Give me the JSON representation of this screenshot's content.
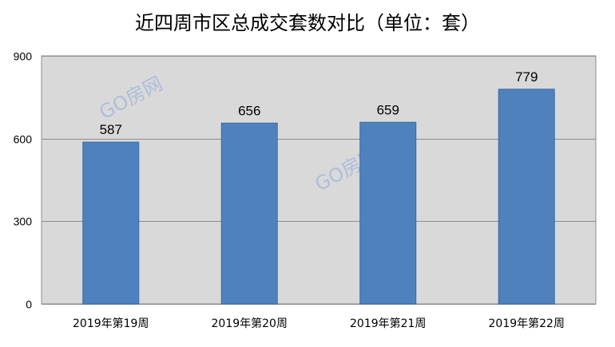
{
  "title": "近四周市区总成交套数对比（单位：套）",
  "watermark": "GO房网",
  "colors": {
    "bar": "#4f81bd",
    "bar_edge": "#3a6aa6",
    "plot_background": "#d9d9d9",
    "gridline": "#8c8c8c",
    "watermark": "#7f9bd6"
  },
  "chart_data": {
    "type": "bar",
    "title": "近四周市区总成交套数对比（单位：套）",
    "categories": [
      "2019年第19周",
      "2019年第20周",
      "2019年第21周",
      "2019年第22周"
    ],
    "values": [
      587,
      656,
      659,
      779
    ],
    "data_labels": [
      "587",
      "656",
      "659",
      "779"
    ],
    "ylim": [
      0,
      900
    ],
    "yticks": [
      0,
      300,
      600,
      900
    ],
    "ytick_labels": [
      "0",
      "300",
      "600",
      "900"
    ],
    "xlabel": "",
    "ylabel": "",
    "grid": true,
    "legend": "none"
  }
}
